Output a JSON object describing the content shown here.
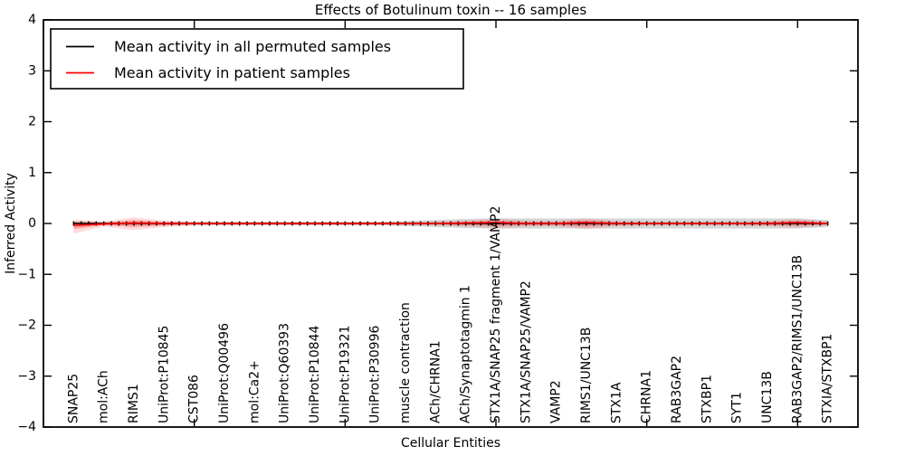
{
  "chart_data": {
    "type": "line",
    "title": "Effects of Botulinum toxin -- 16 samples",
    "xlabel": "Cellular Entities",
    "ylabel": "Inferred Activity",
    "xlim": [
      0,
      27
    ],
    "ylim": [
      -4,
      4
    ],
    "grid": false,
    "ytick_values": [
      -4,
      -3,
      -2,
      -1,
      0,
      1,
      2,
      3,
      4
    ],
    "ytick_labels": [
      "−4",
      "−3",
      "−2",
      "−1",
      "0",
      "1",
      "2",
      "3",
      "4"
    ],
    "xtick_values": [
      0,
      5,
      10,
      15,
      20,
      25
    ],
    "categories": [
      "SNAP25",
      "mol:ACh",
      "RIMS1",
      "UniProt:P10845",
      "CST086",
      "UniProt:Q00496",
      "mol:Ca2+",
      "UniProt:Q60393",
      "UniProt:P10844",
      "UniProt:P19321",
      "UniProt:P30996",
      "muscle contraction",
      "ACh/CHRNA1",
      "ACh/Synaptotagmin 1",
      "STX1A/SNAP25 fragment 1/VAMP2",
      "STX1A/SNAP25/VAMP2",
      "VAMP2",
      "RIMS1/UNC13B",
      "STX1A",
      "CHRNA1",
      "RAB3GAP2",
      "STXBP1",
      "SYT1",
      "UNC13B",
      "RAB3GAP2/RIMS1/UNC13B",
      "STXIA/STXBP1"
    ],
    "series": [
      {
        "name": "Mean activity in all permuted samples",
        "color": "#000000",
        "marker": "+",
        "values": [
          0,
          0,
          0,
          0,
          0,
          0,
          0,
          0,
          0,
          0,
          0,
          0,
          0,
          0,
          0,
          0,
          0,
          0,
          0,
          0,
          0,
          0,
          0,
          0,
          0,
          0
        ]
      },
      {
        "name": "Mean activity in patient samples",
        "color": "#ff0000",
        "marker": "none",
        "values": [
          -0.04,
          -0.01,
          0.01,
          0,
          0,
          0,
          0,
          0,
          0,
          0,
          0,
          0,
          0,
          0.01,
          0.02,
          0,
          0,
          0.02,
          0,
          0,
          0,
          0,
          0,
          0,
          0.02,
          0
        ]
      }
    ],
    "bands": [
      {
        "name": "permuted-range",
        "color": "rgba(110,110,110,0.28)",
        "upper": [
          0.03,
          0.03,
          0.03,
          0.03,
          0.03,
          0.03,
          0.03,
          0.03,
          0.03,
          0.03,
          0.03,
          0.05,
          0.07,
          0.09,
          0.1,
          0.1,
          0.1,
          0.1,
          0.1,
          0.1,
          0.1,
          0.1,
          0.1,
          0.1,
          0.1,
          0.07
        ],
        "lower": [
          -0.03,
          -0.03,
          -0.03,
          -0.03,
          -0.03,
          -0.03,
          -0.03,
          -0.03,
          -0.03,
          -0.03,
          -0.03,
          -0.05,
          -0.07,
          -0.09,
          -0.1,
          -0.1,
          -0.1,
          -0.1,
          -0.1,
          -0.1,
          -0.1,
          -0.1,
          -0.1,
          -0.1,
          -0.1,
          -0.07
        ]
      },
      {
        "name": "patient-range-outer",
        "color": "rgba(255,40,40,0.16)",
        "upper": [
          0.08,
          0.04,
          0.12,
          0.06,
          0.04,
          0.035,
          0.035,
          0.035,
          0.035,
          0.035,
          0.035,
          0.035,
          0.04,
          0.06,
          0.1,
          0.06,
          0.05,
          0.1,
          0.05,
          0.04,
          0.04,
          0.04,
          0.04,
          0.05,
          0.09,
          0.04
        ],
        "lower": [
          -0.2,
          -0.06,
          -0.13,
          -0.07,
          -0.04,
          -0.035,
          -0.035,
          -0.035,
          -0.035,
          -0.035,
          -0.035,
          -0.035,
          -0.04,
          -0.06,
          -0.09,
          -0.06,
          -0.05,
          -0.11,
          -0.05,
          -0.04,
          -0.04,
          -0.04,
          -0.04,
          -0.05,
          -0.08,
          -0.04
        ]
      },
      {
        "name": "patient-range-inner",
        "color": "rgba(255,30,30,0.30)",
        "upper": [
          0.04,
          0.02,
          0.07,
          0.03,
          0.02,
          0.02,
          0.02,
          0.02,
          0.02,
          0.02,
          0.02,
          0.02,
          0.02,
          0.03,
          0.055,
          0.03,
          0.03,
          0.055,
          0.03,
          0.02,
          0.02,
          0.02,
          0.02,
          0.03,
          0.05,
          0.02
        ],
        "lower": [
          -0.11,
          -0.03,
          -0.07,
          -0.04,
          -0.02,
          -0.02,
          -0.02,
          -0.02,
          -0.02,
          -0.02,
          -0.02,
          -0.02,
          -0.02,
          -0.03,
          -0.05,
          -0.03,
          -0.03,
          -0.06,
          -0.03,
          -0.02,
          -0.02,
          -0.02,
          -0.02,
          -0.03,
          -0.045,
          -0.02
        ]
      }
    ],
    "legend": {
      "position": "upper left"
    }
  }
}
